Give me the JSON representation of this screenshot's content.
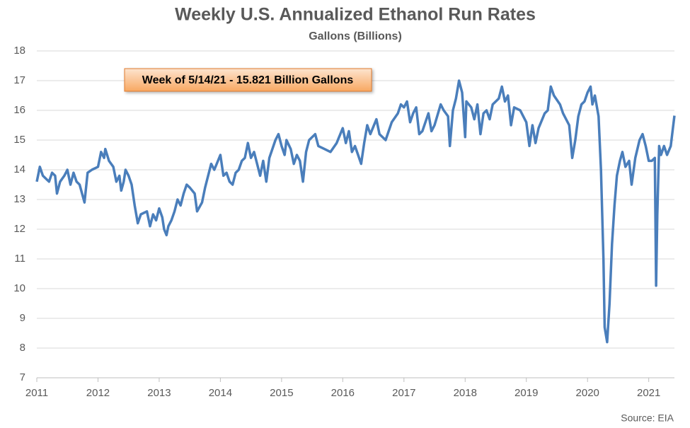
{
  "chart_data": {
    "type": "line",
    "title": "Weekly U.S. Annualized Ethanol Run Rates",
    "subtitle": "Gallons (Billions)",
    "annotation": "Week of 5/14/21 - 15.821 Billion Gallons",
    "source": "Source: EIA",
    "xlim": [
      2011,
      2021.42
    ],
    "xticks": [
      2011,
      2012,
      2013,
      2014,
      2015,
      2016,
      2017,
      2018,
      2019,
      2020,
      2021
    ],
    "ylim": [
      7,
      18
    ],
    "yticks": [
      7,
      8,
      9,
      10,
      11,
      12,
      13,
      14,
      15,
      16,
      17,
      18
    ],
    "grid": true,
    "series": [
      {
        "color": "#4a7ebb",
        "x": [
          2011.0,
          2011.05,
          2011.1,
          2011.2,
          2011.25,
          2011.3,
          2011.33,
          2011.38,
          2011.45,
          2011.5,
          2011.55,
          2011.6,
          2011.65,
          2011.7,
          2011.78,
          2011.83,
          2011.9,
          2012.0,
          2012.05,
          2012.1,
          2012.12,
          2012.18,
          2012.25,
          2012.3,
          2012.35,
          2012.38,
          2012.42,
          2012.45,
          2012.5,
          2012.55,
          2012.6,
          2012.65,
          2012.7,
          2012.8,
          2012.85,
          2012.9,
          2012.95,
          2013.0,
          2013.05,
          2013.08,
          2013.12,
          2013.15,
          2013.2,
          2013.25,
          2013.3,
          2013.35,
          2013.4,
          2013.45,
          2013.5,
          2013.58,
          2013.62,
          2013.7,
          2013.75,
          2013.8,
          2013.85,
          2013.9,
          2014.0,
          2014.05,
          2014.1,
          2014.15,
          2014.2,
          2014.25,
          2014.3,
          2014.35,
          2014.4,
          2014.45,
          2014.5,
          2014.55,
          2014.65,
          2014.7,
          2014.75,
          2014.8,
          2014.9,
          2014.95,
          2015.0,
          2015.05,
          2015.08,
          2015.15,
          2015.2,
          2015.25,
          2015.3,
          2015.35,
          2015.4,
          2015.45,
          2015.55,
          2015.6,
          2015.7,
          2015.8,
          2015.9,
          2016.0,
          2016.05,
          2016.1,
          2016.15,
          2016.2,
          2016.25,
          2016.3,
          2016.35,
          2016.4,
          2016.45,
          2016.55,
          2016.6,
          2016.7,
          2016.8,
          2016.9,
          2016.95,
          2017.0,
          2017.05,
          2017.1,
          2017.15,
          2017.2,
          2017.25,
          2017.3,
          2017.4,
          2017.45,
          2017.5,
          2017.6,
          2017.65,
          2017.72,
          2017.75,
          2017.8,
          2017.85,
          2017.9,
          2017.95,
          2018.0,
          2018.02,
          2018.1,
          2018.15,
          2018.2,
          2018.25,
          2018.3,
          2018.35,
          2018.4,
          2018.45,
          2018.55,
          2018.6,
          2018.65,
          2018.7,
          2018.75,
          2018.8,
          2018.9,
          2018.95,
          2019.0,
          2019.05,
          2019.1,
          2019.15,
          2019.2,
          2019.3,
          2019.35,
          2019.4,
          2019.45,
          2019.55,
          2019.6,
          2019.7,
          2019.75,
          2019.8,
          2019.85,
          2019.9,
          2019.95,
          2020.0,
          2020.05,
          2020.08,
          2020.12,
          2020.18,
          2020.22,
          2020.26,
          2020.28,
          2020.32,
          2020.36,
          2020.4,
          2020.44,
          2020.48,
          2020.53,
          2020.57,
          2020.62,
          2020.68,
          2020.72,
          2020.78,
          2020.85,
          2020.9,
          2020.95,
          2021.0,
          2021.05,
          2021.1,
          2021.12,
          2021.14,
          2021.17,
          2021.2,
          2021.25,
          2021.3,
          2021.36,
          2021.42
        ],
        "values": [
          13.6,
          14.1,
          13.8,
          13.6,
          13.9,
          13.8,
          13.2,
          13.6,
          13.8,
          14.0,
          13.5,
          13.9,
          13.6,
          13.5,
          12.9,
          13.9,
          14.0,
          14.1,
          14.6,
          14.4,
          14.7,
          14.3,
          14.1,
          13.6,
          13.8,
          13.3,
          13.6,
          14.0,
          13.8,
          13.5,
          12.8,
          12.2,
          12.5,
          12.6,
          12.1,
          12.5,
          12.3,
          12.7,
          12.4,
          12.0,
          11.8,
          12.1,
          12.3,
          12.6,
          13.0,
          12.8,
          13.2,
          13.5,
          13.4,
          13.2,
          12.6,
          12.9,
          13.4,
          13.8,
          14.2,
          14.0,
          14.5,
          13.8,
          13.9,
          13.6,
          13.5,
          13.9,
          14.0,
          14.3,
          14.4,
          14.9,
          14.4,
          14.6,
          13.8,
          14.3,
          13.6,
          14.4,
          15.0,
          15.2,
          14.8,
          14.5,
          15.0,
          14.7,
          14.2,
          14.5,
          14.3,
          13.6,
          14.6,
          15.0,
          15.2,
          14.8,
          14.7,
          14.6,
          14.9,
          15.4,
          14.9,
          15.3,
          14.6,
          14.8,
          14.5,
          14.2,
          14.9,
          15.5,
          15.2,
          15.7,
          15.2,
          15.0,
          15.6,
          15.9,
          16.2,
          16.1,
          16.3,
          15.6,
          15.9,
          16.1,
          15.2,
          15.3,
          15.9,
          15.3,
          15.5,
          16.2,
          16.0,
          15.8,
          14.8,
          16.0,
          16.4,
          17.0,
          16.6,
          15.1,
          16.3,
          16.1,
          15.7,
          16.2,
          15.2,
          15.9,
          16.0,
          15.7,
          16.2,
          16.4,
          16.8,
          16.3,
          16.5,
          15.5,
          16.1,
          16.0,
          15.8,
          15.6,
          14.8,
          15.5,
          14.9,
          15.4,
          15.9,
          16.0,
          16.8,
          16.5,
          16.2,
          15.9,
          15.5,
          14.4,
          15.0,
          15.8,
          16.2,
          16.3,
          16.6,
          16.8,
          16.2,
          16.5,
          15.8,
          14.0,
          11.0,
          8.7,
          8.2,
          9.5,
          11.5,
          12.8,
          13.8,
          14.3,
          14.6,
          14.1,
          14.3,
          13.5,
          14.4,
          15.0,
          15.2,
          14.8,
          14.3,
          14.3,
          14.4,
          10.1,
          12.5,
          14.8,
          14.5,
          14.8,
          14.5,
          14.8,
          15.821
        ]
      }
    ]
  }
}
